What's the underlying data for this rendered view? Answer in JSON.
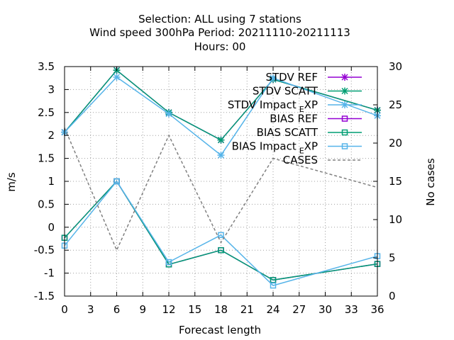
{
  "chart_data": {
    "type": "line",
    "title_lines": [
      "Selection: ALL using     7 stations",
      "Wind speed 300hPa   Period: 20211110-20211113",
      "Hours:  00"
    ],
    "xlabel": "Forecast length",
    "ylabel": "m/s",
    "y2label": "No cases",
    "xlim": [
      0,
      36
    ],
    "ylim": [
      -1.5,
      3.5
    ],
    "y2lim": [
      0,
      30
    ],
    "xticks": [
      "0",
      "3",
      "6",
      "9",
      "12",
      "15",
      "18",
      "21",
      "24",
      "27",
      "30",
      "33",
      "36"
    ],
    "yticks": [
      "-1.5",
      "-1",
      "-0.5",
      "0",
      "0.5",
      "1",
      "1.5",
      "2",
      "2.5",
      "3",
      "3.5"
    ],
    "y2ticks": [
      "0",
      "5",
      "10",
      "15",
      "20",
      "25",
      "30"
    ],
    "grid": true,
    "legend_position": "top-right",
    "x": [
      0,
      6,
      12,
      18,
      24,
      36
    ],
    "series": [
      {
        "name": "STDV REF",
        "axis": "y",
        "marker": "star",
        "color": "#9400d3",
        "dash": false,
        "values": [
          2.07,
          3.42,
          2.5,
          1.9,
          3.22,
          2.55
        ]
      },
      {
        "name": "STDV SCATT",
        "axis": "y",
        "marker": "star",
        "color": "#009e73",
        "dash": false,
        "values": [
          2.07,
          3.42,
          2.5,
          1.9,
          3.22,
          2.55
        ]
      },
      {
        "name": "STDV Impact_EXP",
        "axis": "y",
        "marker": "star",
        "color": "#56b4e9",
        "dash": false,
        "values": [
          2.07,
          3.27,
          2.47,
          1.57,
          3.25,
          2.43
        ]
      },
      {
        "name": "BIAS REF",
        "axis": "y",
        "marker": "square",
        "color": "#9400d3",
        "dash": false,
        "values": [
          -0.23,
          1.0,
          -0.81,
          -0.5,
          -1.15,
          -0.8
        ]
      },
      {
        "name": "BIAS SCATT",
        "axis": "y",
        "marker": "square",
        "color": "#009e73",
        "dash": false,
        "values": [
          -0.23,
          1.0,
          -0.81,
          -0.5,
          -1.15,
          -0.8
        ]
      },
      {
        "name": "BIAS Impact_EXP",
        "axis": "y",
        "marker": "square",
        "color": "#56b4e9",
        "dash": false,
        "values": [
          -0.4,
          1.0,
          -0.76,
          -0.17,
          -1.27,
          -0.63
        ]
      },
      {
        "name": "CASES",
        "axis": "y2",
        "marker": "none",
        "color": "#808080",
        "dash": true,
        "values": [
          22,
          6,
          21,
          7,
          18,
          14.2
        ]
      }
    ],
    "legend_entries": [
      {
        "text": "STDV REF"
      },
      {
        "text": "STDV SCATT"
      },
      {
        "text": "STDV Impact",
        "sub": "E",
        "tail": "XP"
      },
      {
        "text": "BIAS REF"
      },
      {
        "text": "BIAS SCATT"
      },
      {
        "text": "BIAS Impact",
        "sub": "E",
        "tail": "XP"
      },
      {
        "text": "CASES"
      }
    ]
  }
}
